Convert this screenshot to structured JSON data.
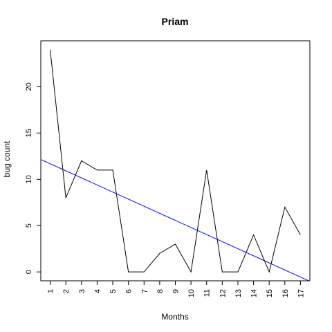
{
  "chart_data": {
    "type": "line",
    "title": "Priam",
    "xlabel": "Months",
    "ylabel": "bug count",
    "x": [
      1,
      2,
      3,
      4,
      5,
      6,
      7,
      8,
      9,
      10,
      11,
      12,
      13,
      14,
      15,
      16,
      17
    ],
    "x_tick_labels": [
      "1",
      "2",
      "3",
      "4",
      "5",
      "6",
      "7",
      "8",
      "9",
      "10",
      "11",
      "12",
      "13",
      "14",
      "15",
      "16",
      "17"
    ],
    "y_ticks": [
      0,
      5,
      10,
      15,
      20
    ],
    "y_tick_labels": [
      "0",
      "5",
      "10",
      "15",
      "20"
    ],
    "series": [
      {
        "values": [
          24,
          8,
          12,
          11,
          11,
          0,
          0,
          2,
          3,
          0,
          11,
          0,
          0,
          4,
          0,
          7,
          4
        ],
        "color": "#000000"
      }
    ],
    "trend_line": {
      "intercept": 12.45,
      "slope": -0.765,
      "color": "#0000ff"
    },
    "xlim": [
      0.4,
      17.6
    ],
    "ylim": [
      -0.96,
      24.96
    ],
    "grid": false,
    "legend": "none"
  }
}
